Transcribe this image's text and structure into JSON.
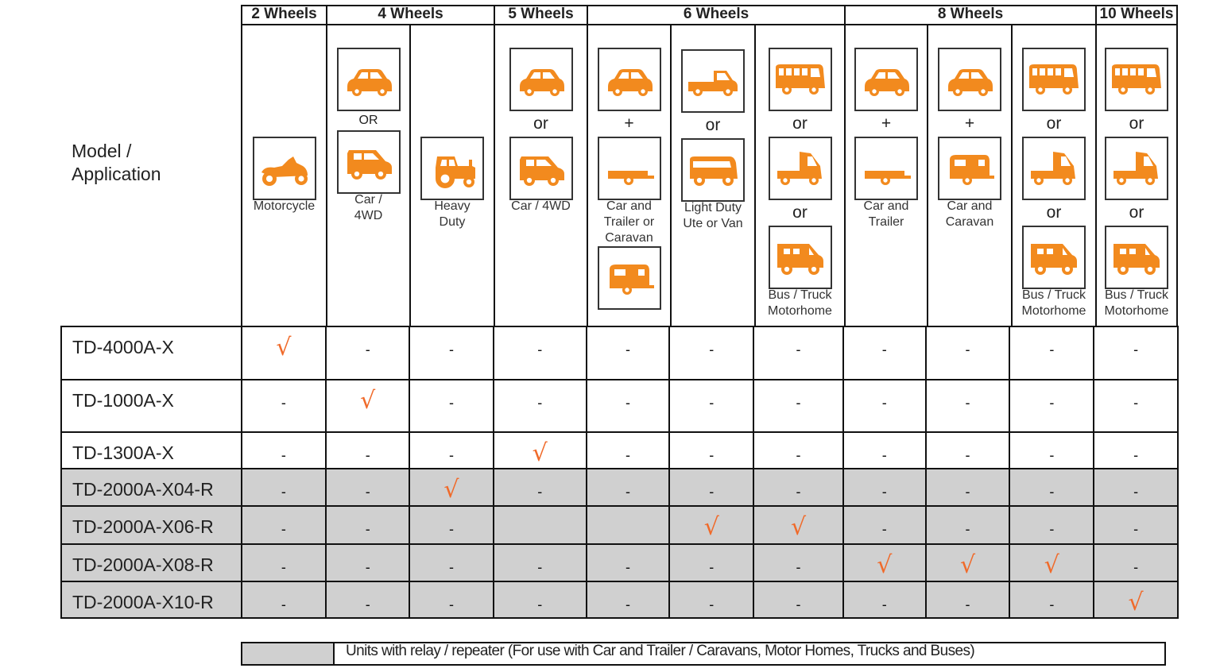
{
  "colors": {
    "accent": "#f28a1e",
    "check": "#f06a2a",
    "shade": "#d0d0d0"
  },
  "model_header": "Model /\nApplication",
  "groups": [
    {
      "label": "2 Wheels",
      "span": 1
    },
    {
      "label": "4 Wheels",
      "span": 2
    },
    {
      "label": "5 Wheels",
      "span": 1
    },
    {
      "label": "6 Wheels",
      "span": 3
    },
    {
      "label": "8 Wheels",
      "span": 3
    },
    {
      "label": "10 Wheels",
      "span": 1
    }
  ],
  "columns": [
    {
      "items": [
        {
          "icon": "motorcycle"
        },
        {
          "caption": "Motorcycle"
        }
      ]
    },
    {
      "items": [
        {
          "icon": "car"
        },
        {
          "sep": "OR"
        },
        {
          "icon": "suv"
        },
        {
          "caption": "Car /\n4WD"
        }
      ]
    },
    {
      "items": [
        {
          "icon": "tractor"
        },
        {
          "caption": "Heavy\nDuty"
        }
      ]
    },
    {
      "items": [
        {
          "icon": "car"
        },
        {
          "sep": "or"
        },
        {
          "icon": "suv"
        },
        {
          "caption": "Car / 4WD"
        }
      ]
    },
    {
      "items": [
        {
          "icon": "car"
        },
        {
          "sep": "+"
        },
        {
          "icon": "trailer"
        },
        {
          "caption": "Car and\nTrailer or\nCaravan"
        },
        {
          "icon": "caravan"
        }
      ]
    },
    {
      "items": [
        {
          "icon": "ute"
        },
        {
          "sep": "or"
        },
        {
          "icon": "van"
        },
        {
          "caption": "Light Duty\nUte or Van"
        }
      ]
    },
    {
      "items": [
        {
          "icon": "bus"
        },
        {
          "sep": "or"
        },
        {
          "icon": "truck"
        },
        {
          "sep": "or"
        },
        {
          "icon": "motorhome"
        },
        {
          "caption": "Bus / Truck\nMotorhome"
        }
      ]
    },
    {
      "items": [
        {
          "icon": "car"
        },
        {
          "sep": "+"
        },
        {
          "icon": "trailer"
        },
        {
          "caption": "Car and\nTrailer"
        }
      ]
    },
    {
      "items": [
        {
          "icon": "car"
        },
        {
          "sep": "+"
        },
        {
          "icon": "caravan"
        },
        {
          "caption": "Car and\nCaravan"
        }
      ]
    },
    {
      "items": [
        {
          "icon": "bus"
        },
        {
          "sep": "or"
        },
        {
          "icon": "truck"
        },
        {
          "sep": "or"
        },
        {
          "icon": "motorhome"
        },
        {
          "caption": "Bus / Truck\nMotorhome"
        }
      ]
    },
    {
      "items": [
        {
          "icon": "bus"
        },
        {
          "sep": "or"
        },
        {
          "icon": "truck"
        },
        {
          "sep": "or"
        },
        {
          "icon": "motorhome"
        },
        {
          "caption": "Bus / Truck\nMotorhome"
        }
      ]
    }
  ],
  "rows": [
    {
      "model": "TD-4000A-X",
      "shaded": false,
      "cells": [
        "√",
        "-",
        "-",
        "-",
        "-",
        "-",
        "-",
        "-",
        "-",
        "-",
        "-"
      ]
    },
    {
      "model": "TD-1000A-X",
      "shaded": false,
      "cells": [
        "-",
        "√",
        "-",
        "-",
        "-",
        "-",
        "-",
        "-",
        "-",
        "-",
        "-"
      ]
    },
    {
      "model": "TD-1300A-X",
      "shaded": false,
      "cells": [
        "-",
        "-",
        "-",
        "√",
        "-",
        "-",
        "-",
        "-",
        "-",
        "-",
        "-"
      ]
    },
    {
      "model": "TD-2000A-X04-R",
      "shaded": true,
      "cells": [
        "-",
        "-",
        "√",
        "-",
        "-",
        "-",
        "-",
        "-",
        "-",
        "-",
        "-"
      ]
    },
    {
      "model": "TD-2000A-X06-R",
      "shaded": true,
      "cells": [
        "-",
        "-",
        "-",
        "",
        "",
        "√",
        "√",
        "-",
        "-",
        "-",
        "-"
      ]
    },
    {
      "model": "TD-2000A-X08-R",
      "shaded": true,
      "cells": [
        "-",
        "-",
        "-",
        "-",
        "-",
        "-",
        "-",
        "√",
        "√",
        "√",
        "-"
      ]
    },
    {
      "model": "TD-2000A-X10-R",
      "shaded": true,
      "cells": [
        "-",
        "-",
        "-",
        "-",
        "-",
        "-",
        "-",
        "-",
        "-",
        "-",
        "√"
      ]
    }
  ],
  "legend": "Units with relay / repeater (For use with Car and Trailer / Caravans, Motor Homes, Trucks and Buses)"
}
